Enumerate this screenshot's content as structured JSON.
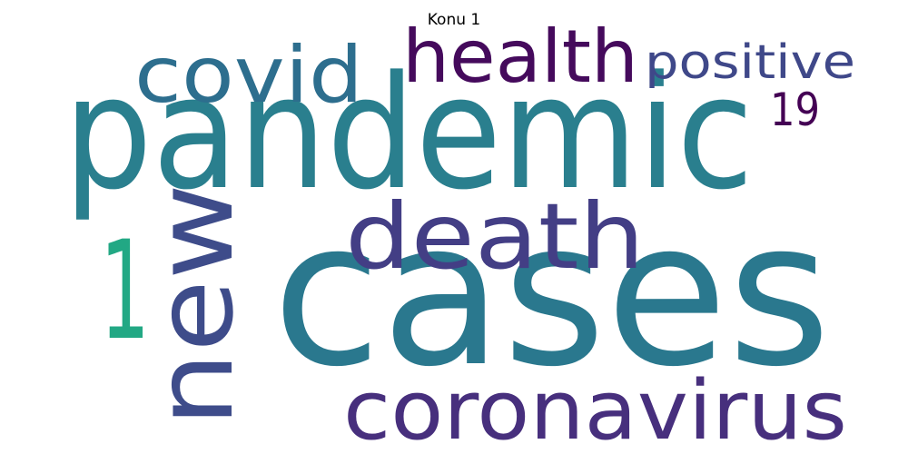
{
  "title": "Konu 1",
  "words": [
    {
      "text": "cases",
      "color": "#2a788e"
    },
    {
      "text": "pandemic",
      "color": "#2a7f8e"
    },
    {
      "text": "new",
      "color": "#3e4c8a"
    },
    {
      "text": "death",
      "color": "#433e85"
    },
    {
      "text": "coronavirus",
      "color": "#472f7d"
    },
    {
      "text": "1",
      "color": "#22a884"
    },
    {
      "text": "covid",
      "color": "#2d6e8e"
    },
    {
      "text": "health",
      "color": "#450a5c"
    },
    {
      "text": "positive",
      "color": "#3f4889"
    },
    {
      "text": "19",
      "color": "#440154"
    }
  ]
}
